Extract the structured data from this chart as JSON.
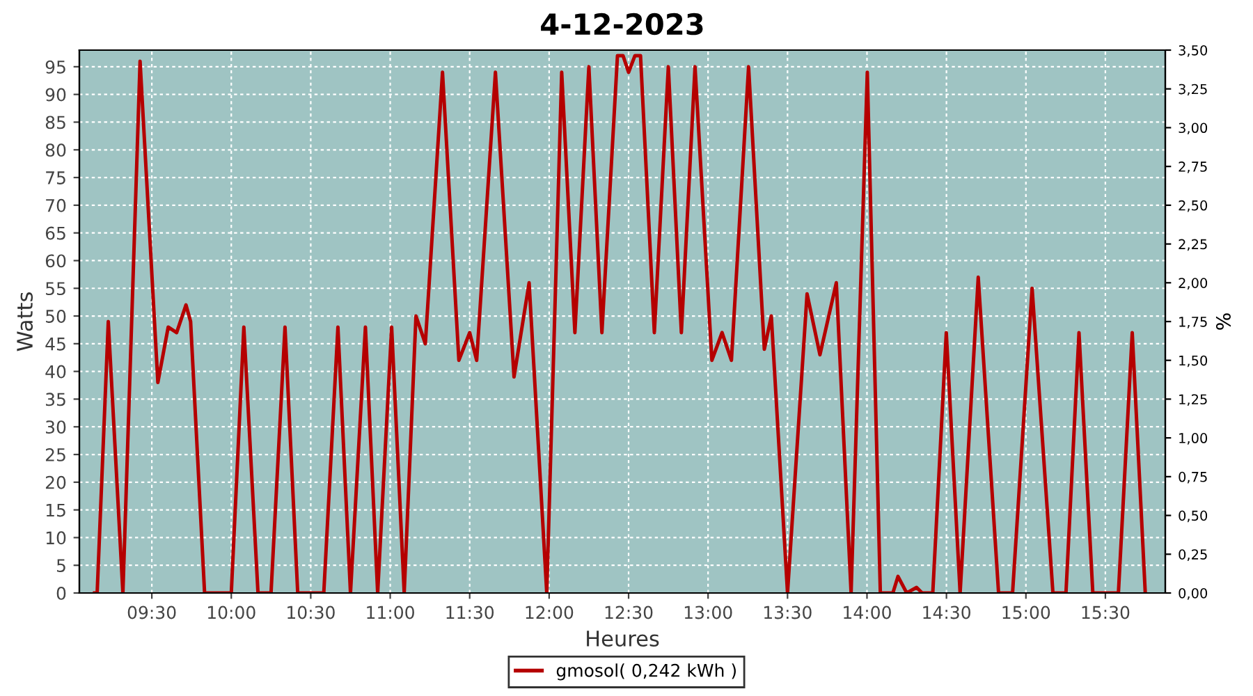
{
  "chart_data": {
    "type": "line",
    "title": "4-12-2023",
    "xlabel": "Heures",
    "ylabel": "Watts",
    "y2label": "%",
    "x": [
      9.14,
      9.156,
      9.226,
      9.318,
      9.426,
      9.538,
      9.603,
      9.656,
      9.715,
      9.744,
      9.832,
      10.0,
      10.079,
      10.168,
      10.25,
      10.338,
      10.418,
      10.582,
      10.671,
      10.75,
      10.844,
      10.921,
      11.009,
      11.088,
      11.162,
      11.221,
      11.329,
      11.432,
      11.5,
      11.544,
      11.662,
      11.779,
      11.874,
      11.985,
      12.079,
      12.162,
      12.25,
      12.332,
      12.43,
      12.465,
      12.5,
      12.54,
      12.575,
      12.662,
      12.75,
      12.832,
      12.918,
      13.024,
      13.088,
      13.147,
      13.255,
      13.354,
      13.398,
      13.5,
      13.623,
      13.704,
      13.807,
      13.9,
      14.002,
      14.084,
      14.163,
      14.195,
      14.25,
      14.312,
      14.347,
      14.414,
      14.499,
      14.586,
      14.7,
      14.828,
      14.916,
      15.039,
      15.17,
      15.252,
      15.334,
      15.421,
      15.582,
      15.669,
      15.751
    ],
    "series": [
      {
        "name": "gmosol( 0,242 kWh )",
        "color": "#b50000",
        "values": [
          0,
          0,
          49,
          0,
          96,
          38,
          48,
          47,
          52,
          49,
          0,
          0,
          48,
          0,
          0,
          48,
          0,
          0,
          48,
          0,
          48,
          0,
          48,
          0,
          50,
          45,
          94,
          42,
          47,
          42,
          94,
          39,
          56,
          0,
          94,
          47,
          95,
          47,
          97,
          97,
          94,
          97,
          97,
          47,
          95,
          47,
          95,
          42,
          47,
          42,
          95,
          44,
          50,
          0,
          54,
          43,
          56,
          0,
          94,
          0,
          0,
          3,
          0,
          1,
          0,
          0,
          47,
          0,
          57,
          0,
          0,
          55,
          0,
          0,
          47,
          0,
          0,
          47,
          0
        ]
      }
    ],
    "xlim": [
      9.044,
      15.877
    ],
    "xticks": [
      {
        "value": 9.5,
        "label": "09:30"
      },
      {
        "value": 10,
        "label": "10:00"
      },
      {
        "value": 10.5,
        "label": "10:30"
      },
      {
        "value": 11,
        "label": "11:00"
      },
      {
        "value": 11.5,
        "label": "11:30"
      },
      {
        "value": 12,
        "label": "12:00"
      },
      {
        "value": 12.5,
        "label": "12:30"
      },
      {
        "value": 13,
        "label": "13:00"
      },
      {
        "value": 13.5,
        "label": "13:30"
      },
      {
        "value": 14,
        "label": "14:00"
      },
      {
        "value": 14.5,
        "label": "14:30"
      },
      {
        "value": 15,
        "label": "15:00"
      },
      {
        "value": 15.5,
        "label": "15:30"
      }
    ],
    "ylim": [
      0,
      98
    ],
    "yticks": [
      0,
      5,
      10,
      15,
      20,
      25,
      30,
      35,
      40,
      45,
      50,
      55,
      60,
      65,
      70,
      75,
      80,
      85,
      90,
      95
    ],
    "y2lim": [
      0,
      3.5
    ],
    "y2ticks": [
      {
        "value": 0,
        "label": "0,00"
      },
      {
        "value": 0.25,
        "label": "0,25"
      },
      {
        "value": 0.5,
        "label": "0,50"
      },
      {
        "value": 0.75,
        "label": "0,75"
      },
      {
        "value": 1,
        "label": "1,00"
      },
      {
        "value": 1.25,
        "label": "1,25"
      },
      {
        "value": 1.5,
        "label": "1,50"
      },
      {
        "value": 1.75,
        "label": "1,75"
      },
      {
        "value": 2,
        "label": "2,00"
      },
      {
        "value": 2.25,
        "label": "2,25"
      },
      {
        "value": 2.5,
        "label": "2,50"
      },
      {
        "value": 2.75,
        "label": "2,75"
      },
      {
        "value": 3,
        "label": "3,00"
      },
      {
        "value": 3.25,
        "label": "3,25"
      },
      {
        "value": 3.5,
        "label": "3,50"
      }
    ],
    "grid": true,
    "legend": "bottom",
    "marker": "none",
    "line_style": "solid"
  }
}
